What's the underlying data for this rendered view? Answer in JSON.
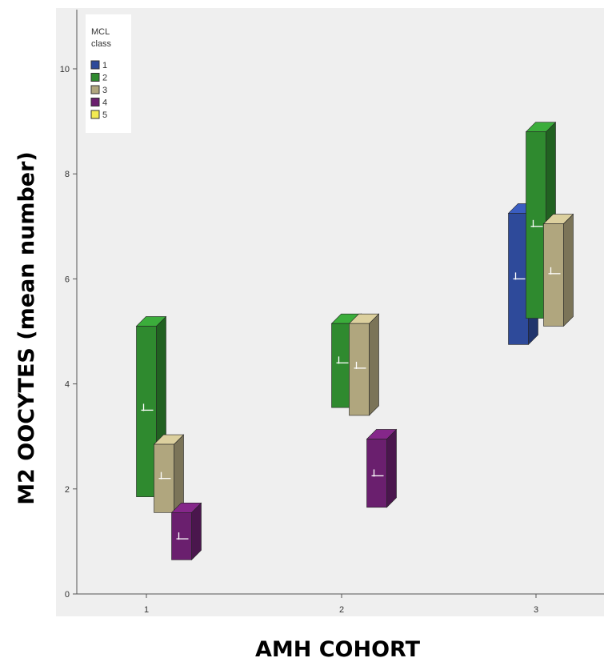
{
  "chart_data": {
    "type": "3d-error-bar",
    "xlabel": "AMH COHORT",
    "ylabel": "M2 OOCYTES (mean number)",
    "categories": [
      "1",
      "2",
      "3"
    ],
    "ylim": [
      0,
      11
    ],
    "yticks": [
      "0",
      "2",
      "4",
      "6",
      "8",
      "10"
    ],
    "legend": {
      "title_lines": [
        "MCL",
        "class"
      ],
      "position": "top-left",
      "entries": [
        {
          "label": "1",
          "color": "#2e4a9a"
        },
        {
          "label": "2",
          "color": "#2f8a2f"
        },
        {
          "label": "3",
          "color": "#b0a67e"
        },
        {
          "label": "4",
          "color": "#6a1f6e"
        },
        {
          "label": "5",
          "color": "#f2ea52"
        }
      ]
    },
    "series": [
      {
        "name": "1",
        "color": "#2e4a9a",
        "points": [
          {
            "x": "3",
            "mean": 6.0,
            "low": 4.75,
            "high": 7.25
          }
        ]
      },
      {
        "name": "2",
        "color": "#2f8a2f",
        "points": [
          {
            "x": "1",
            "mean": 3.5,
            "low": 1.85,
            "high": 5.1
          },
          {
            "x": "2",
            "mean": 4.4,
            "low": 3.55,
            "high": 5.15
          },
          {
            "x": "3",
            "mean": 7.0,
            "low": 5.25,
            "high": 8.8
          }
        ]
      },
      {
        "name": "3",
        "color": "#b0a67e",
        "points": [
          {
            "x": "1",
            "mean": 2.2,
            "low": 1.55,
            "high": 2.85
          },
          {
            "x": "2",
            "mean": 4.3,
            "low": 3.4,
            "high": 5.15
          },
          {
            "x": "3",
            "mean": 6.1,
            "low": 5.1,
            "high": 7.05
          }
        ]
      },
      {
        "name": "4",
        "color": "#6a1f6e",
        "points": [
          {
            "x": "1",
            "mean": 1.05,
            "low": 0.65,
            "high": 1.55
          },
          {
            "x": "2",
            "mean": 2.25,
            "low": 1.65,
            "high": 2.95
          }
        ]
      }
    ]
  }
}
